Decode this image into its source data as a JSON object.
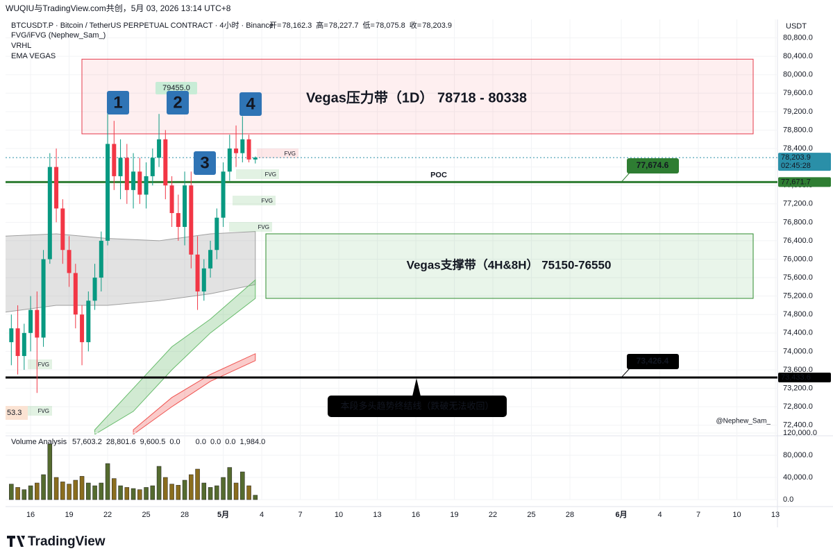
{
  "header": {
    "top_text": "WUQIU与TradingView.com共创，5月 03, 2026 13:14 UTC+8",
    "symbol": "BTCUSDT.P · Bitcoin / TetherUS PERPETUAL CONTRACT · 4小时 · Binance",
    "ohlc": [
      {
        "key": "开=",
        "value": "78,162.3"
      },
      {
        "key": "高=",
        "value": "78,227.7"
      },
      {
        "key": "低=",
        "value": "78,075.8"
      },
      {
        "key": "收=",
        "value": "78,203.9"
      }
    ],
    "indicators": [
      "FVG/iFVG (Nephew_Sam_)",
      "VRHL",
      "EMA VEGAS"
    ],
    "currency": "USDT"
  },
  "chart_data": {
    "type": "candlestick",
    "x": [
      -1.5,
      -1,
      -0.5,
      0,
      0.5,
      1,
      1.5,
      2,
      2.5,
      3,
      3.5,
      4,
      4.5,
      5,
      5.5,
      6,
      6.5,
      7,
      7.5,
      8,
      8.5,
      9,
      9.5,
      10,
      10.5,
      11,
      11.5,
      12,
      12.5,
      13,
      13.5,
      14,
      14.5,
      15,
      15.5,
      16,
      16.5,
      17,
      17.5
    ],
    "open": [
      74200,
      74500,
      73900,
      74400,
      74900,
      74300,
      76000,
      78000,
      77100,
      76200,
      75700,
      74800,
      74200,
      75100,
      75600,
      76400,
      78500,
      77800,
      78200,
      77500,
      77900,
      77400,
      77800,
      78200,
      78600,
      77600,
      77000,
      76700,
      77600,
      76100,
      75300,
      75800,
      76200,
      76900,
      77900,
      78400,
      78300,
      78600,
      78162.3
    ],
    "high": [
      74800,
      75000,
      74600,
      75200,
      75300,
      76200,
      78300,
      78400,
      77300,
      76500,
      75900,
      75000,
      75300,
      75900,
      76600,
      79200,
      79000,
      78600,
      78500,
      78300,
      78200,
      78100,
      78400,
      79150,
      78800,
      77800,
      77400,
      77900,
      77900,
      76500,
      76000,
      76400,
      77100,
      78100,
      78700,
      78900,
      79100,
      78700,
      78227.7
    ],
    "low": [
      73700,
      73500,
      73600,
      74000,
      73100,
      74100,
      75900,
      76800,
      75900,
      75400,
      74500,
      73700,
      74000,
      74900,
      75300,
      76300,
      77500,
      77300,
      77200,
      77100,
      77200,
      77100,
      77600,
      78000,
      77300,
      76700,
      76400,
      76300,
      75800,
      74900,
      75100,
      75600,
      76000,
      76700,
      77700,
      78000,
      78100,
      78100,
      78075.8
    ],
    "close": [
      74500,
      73900,
      74400,
      74900,
      74300,
      76000,
      78000,
      77100,
      76200,
      75700,
      74800,
      74200,
      75100,
      75600,
      76400,
      78500,
      77800,
      78200,
      77500,
      77900,
      77400,
      77800,
      78200,
      78600,
      77600,
      77000,
      76700,
      77600,
      76100,
      75300,
      75800,
      76200,
      76900,
      77900,
      78400,
      78300,
      78600,
      78162.3,
      78203.9
    ],
    "up_color": "#089981",
    "down_color": "#f23645",
    "xlim": [
      -1.95,
      58.16
    ],
    "xticks": [
      {
        "value": 0,
        "label": "16"
      },
      {
        "value": 3,
        "label": "19"
      },
      {
        "value": 6,
        "label": "22"
      },
      {
        "value": 9,
        "label": "25"
      },
      {
        "value": 12,
        "label": "28"
      },
      {
        "value": 15,
        "label": "5月"
      },
      {
        "value": 18,
        "label": "4"
      },
      {
        "value": 21,
        "label": "7"
      },
      {
        "value": 24,
        "label": "10"
      },
      {
        "value": 27,
        "label": "13"
      },
      {
        "value": 30,
        "label": "16"
      },
      {
        "value": 33,
        "label": "19"
      },
      {
        "value": 36,
        "label": "22"
      },
      {
        "value": 39,
        "label": "25"
      },
      {
        "value": 42,
        "label": "28"
      },
      {
        "value": 46,
        "label": "6月"
      },
      {
        "value": 49,
        "label": "4"
      },
      {
        "value": 52,
        "label": "7"
      },
      {
        "value": 55,
        "label": "10"
      },
      {
        "value": 58,
        "label": "13"
      }
    ],
    "ylim": [
      72200,
      81200
    ],
    "yticks": [
      {
        "value": 72400,
        "label": "72,400.0"
      },
      {
        "value": 72800,
        "label": "72,800.0"
      },
      {
        "value": 73200,
        "label": "73,200.0"
      },
      {
        "value": 73600,
        "label": "73,600.0"
      },
      {
        "value": 74000,
        "label": "74,000.0"
      },
      {
        "value": 74400,
        "label": "74,400.0"
      },
      {
        "value": 74800,
        "label": "74,800.0"
      },
      {
        "value": 75200,
        "label": "75,200.0"
      },
      {
        "value": 75600,
        "label": "75,600.0"
      },
      {
        "value": 76000,
        "label": "76,000.0"
      },
      {
        "value": 76400,
        "label": "76,400.0"
      },
      {
        "value": 76800,
        "label": "76,800.0"
      },
      {
        "value": 77200,
        "label": "77,200.0"
      },
      {
        "value": 77600,
        "label": "77,600.0"
      },
      {
        "value": 78000,
        "label": "78,000.0"
      },
      {
        "value": 78400,
        "label": "78,400.0"
      },
      {
        "value": 78800,
        "label": "78,800.0"
      },
      {
        "value": 79200,
        "label": "79,200.0"
      },
      {
        "value": 79600,
        "label": "79,600.0"
      },
      {
        "value": 80000,
        "label": "80,000.0"
      },
      {
        "value": 80400,
        "label": "80,400.0"
      },
      {
        "value": 80800,
        "label": "80,800.0"
      }
    ],
    "grid": true,
    "bands": [
      {
        "color": "#9e9e9e",
        "x": [
          -2,
          2,
          6,
          10,
          14,
          17.5
        ],
        "upper": [
          76500,
          76550,
          76450,
          76400,
          76550,
          76600
        ],
        "lower": [
          74850,
          75000,
          75000,
          75100,
          75250,
          75450
        ]
      },
      {
        "color": "#66bb6a",
        "x": [
          5,
          8,
          11,
          14,
          17.5
        ],
        "upper": [
          72300,
          73200,
          74100,
          74700,
          75550
        ],
        "lower": [
          72200,
          72700,
          73600,
          74400,
          75150
        ]
      },
      {
        "color": "#ef5350",
        "x": [
          8,
          11,
          14,
          17.5
        ],
        "upper": [
          72300,
          73000,
          73500,
          73950
        ],
        "lower": [
          72200,
          72800,
          73350,
          73800
        ]
      }
    ],
    "zones": [
      {
        "label": "Vegas压力带（1D） 78718 - 80338",
        "low": 78718,
        "high": 80338,
        "color": "#e5384a"
      },
      {
        "label": "Vegas支撑带（4H&8H） 75150-76550",
        "low": 75150,
        "high": 76550,
        "color": "#2e8b2e"
      }
    ],
    "levels": [
      {
        "name": "POC",
        "price": 77671.7,
        "label": "77,671.7",
        "callout": "77,674.6",
        "color": "#2e7d32",
        "style": "solid"
      },
      {
        "price": 73433.6,
        "label": "73,433.6",
        "callout": "73,426.4",
        "color": "#000000",
        "style": "solid"
      },
      {
        "price": 78203.9,
        "label": "78,203.9",
        "timer": "02:45:28",
        "color": "#2a8fa8",
        "style": "dotted"
      }
    ],
    "annotations": {
      "badges": [
        "1",
        "2",
        "3",
        "4"
      ],
      "peak_label": "79455.0",
      "fvg": [
        "FVG",
        "FVG",
        "FVG",
        "FVG",
        "FVG",
        "FVG"
      ],
      "partial_label": "53.3",
      "note": "本段多头趋势终结线（跌破无法收回）",
      "watermark": "@Nephew_Sam_"
    }
  },
  "volume": {
    "type": "bar",
    "title": "Volume Analysis",
    "readouts": [
      {
        "text": "57,603.2",
        "color": "#e53935"
      },
      {
        "text": "28,801.6",
        "color": "#e53935"
      },
      {
        "text": "9,600.5",
        "color": "#e53935"
      },
      {
        "text": "0.0",
        "color": "#2962ff"
      },
      {
        "text": "0.0",
        "color": "#1a237e"
      },
      {
        "text": "0.0",
        "color": "#1a237e"
      },
      {
        "text": "0.0",
        "color": "#1a237e"
      },
      {
        "text": "1,984.0",
        "color": "#1a237e"
      }
    ],
    "values": [
      28000,
      22000,
      18000,
      25000,
      30000,
      45000,
      100000,
      40000,
      32000,
      28000,
      35000,
      42000,
      30000,
      25000,
      30000,
      65000,
      38000,
      25000,
      22000,
      20000,
      18000,
      22000,
      25000,
      60000,
      40000,
      28000,
      26000,
      35000,
      45000,
      55000,
      30000,
      22000,
      25000,
      40000,
      58000,
      30000,
      50000,
      25000,
      8000
    ],
    "color": "#556b2f",
    "ylim": [
      0,
      120000
    ],
    "yticks": [
      {
        "value": 0,
        "label": "0.0"
      },
      {
        "value": 40000,
        "label": "40,000.0"
      },
      {
        "value": 80000,
        "label": "80,000.0"
      },
      {
        "value": 120000,
        "label": "120,000.0"
      }
    ]
  },
  "footer": {
    "brand": "TradingView"
  }
}
